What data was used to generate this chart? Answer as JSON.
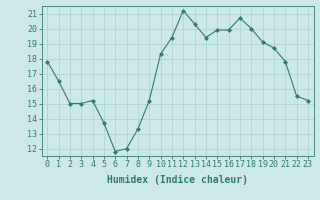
{
  "x": [
    0,
    1,
    2,
    3,
    4,
    5,
    6,
    7,
    8,
    9,
    10,
    11,
    12,
    13,
    14,
    15,
    16,
    17,
    18,
    19,
    20,
    21,
    22,
    23
  ],
  "y": [
    17.8,
    16.5,
    15.0,
    15.0,
    15.2,
    13.7,
    11.8,
    12.0,
    13.3,
    15.2,
    18.3,
    19.4,
    21.2,
    20.3,
    19.4,
    19.9,
    19.9,
    20.7,
    20.0,
    19.1,
    18.7,
    17.8,
    15.5,
    15.2
  ],
  "line_color": "#2e7d6e",
  "marker": "D",
  "marker_size": 2,
  "bg_color": "#cce8e8",
  "grid_color": "#b0d4d4",
  "xlabel": "Humidex (Indice chaleur)",
  "xlim": [
    -0.5,
    23.5
  ],
  "ylim": [
    11.5,
    21.5
  ],
  "yticks": [
    12,
    13,
    14,
    15,
    16,
    17,
    18,
    19,
    20,
    21
  ],
  "xticks": [
    0,
    1,
    2,
    3,
    4,
    5,
    6,
    7,
    8,
    9,
    10,
    11,
    12,
    13,
    14,
    15,
    16,
    17,
    18,
    19,
    20,
    21,
    22,
    23
  ],
  "tick_color": "#2e7d6e",
  "label_fontsize": 6,
  "xlabel_fontsize": 7
}
